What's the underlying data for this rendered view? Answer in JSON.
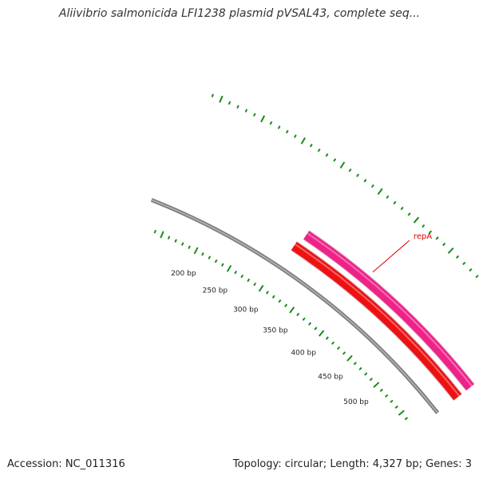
{
  "title": "Aliivibrio salmonicida LFI1238 plasmid pVSAL43, complete seq...",
  "footer": {
    "accession": "Accession: NC_011316",
    "summary": "Topology: circular; Length: 4,327 bp; Genes: 3"
  },
  "plasmid": {
    "length_bp": 4327,
    "visible_range_bp": [
      140,
      560
    ]
  },
  "ruler": {
    "labels": [
      "200 bp",
      "250 bp",
      "300 bp",
      "350 bp",
      "400 bp",
      "450 bp",
      "500 bp"
    ],
    "label_positions_bp": [
      200,
      250,
      300,
      350,
      400,
      450,
      500
    ],
    "tick_color": "#1a8a1a",
    "major_every_bp": 50,
    "minor_every_bp": 10
  },
  "features": [
    {
      "name": "repA",
      "start_bp": 310,
      "end_bp": 560,
      "strand": "+",
      "color": "#ee2288"
    },
    {
      "name": "",
      "start_bp": 305,
      "end_bp": 560,
      "strand": "+",
      "color": "#ee1111"
    }
  ],
  "colors": {
    "backbone": "#808080",
    "label_line": "#dd0000",
    "gene_label": "#dd0000"
  }
}
